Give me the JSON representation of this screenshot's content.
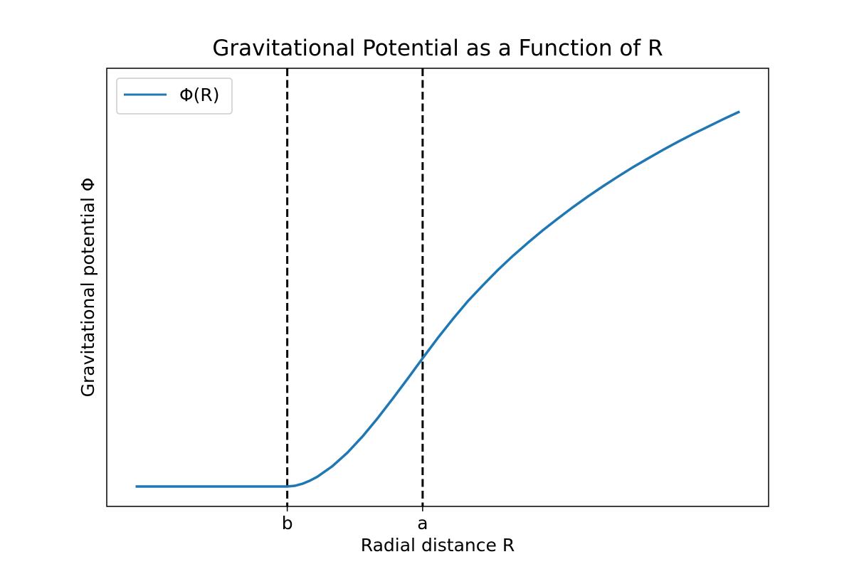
{
  "chart_data": {
    "type": "line",
    "title": "Gravitational Potential as a Function of R",
    "xlabel": "Radial distance R",
    "ylabel": "Gravitational potential Φ",
    "xlim": [
      -0.2,
      4.2
    ],
    "ylim": [
      -0.1,
      2.1
    ],
    "x_tick_values": [
      1.0,
      1.9
    ],
    "x_tick_labels": [
      "b",
      "a"
    ],
    "y_ticks": [],
    "grid": false,
    "legend_location": "upper left",
    "series": [
      {
        "name": "Φ(R)",
        "color": "#1f77b4",
        "x": [
          0.0,
          0.25,
          0.5,
          0.75,
          1.0,
          1.05,
          1.1,
          1.15,
          1.2,
          1.3,
          1.4,
          1.5,
          1.6,
          1.7,
          1.8,
          1.9,
          2.0,
          2.1,
          2.2,
          2.3,
          2.4,
          2.5,
          2.6,
          2.7,
          2.8,
          2.9,
          3.0,
          3.1,
          3.2,
          3.3,
          3.4,
          3.5,
          3.6,
          3.7,
          3.8,
          3.9,
          4.0
        ],
        "y": [
          0.0,
          0.0,
          0.0,
          0.0,
          0.0,
          0.0035,
          0.0135,
          0.029,
          0.049,
          0.102,
          0.17,
          0.251,
          0.342,
          0.44,
          0.541,
          0.644,
          0.745,
          0.84,
          0.93,
          1.01,
          1.087,
          1.158,
          1.224,
          1.287,
          1.346,
          1.403,
          1.457,
          1.508,
          1.557,
          1.604,
          1.648,
          1.691,
          1.732,
          1.771,
          1.808,
          1.845,
          1.88
        ]
      }
    ],
    "reference_lines": [
      {
        "x": 1.0,
        "color": "#000000",
        "style": "dashed"
      },
      {
        "x": 1.9,
        "color": "#000000",
        "style": "dashed"
      }
    ]
  }
}
